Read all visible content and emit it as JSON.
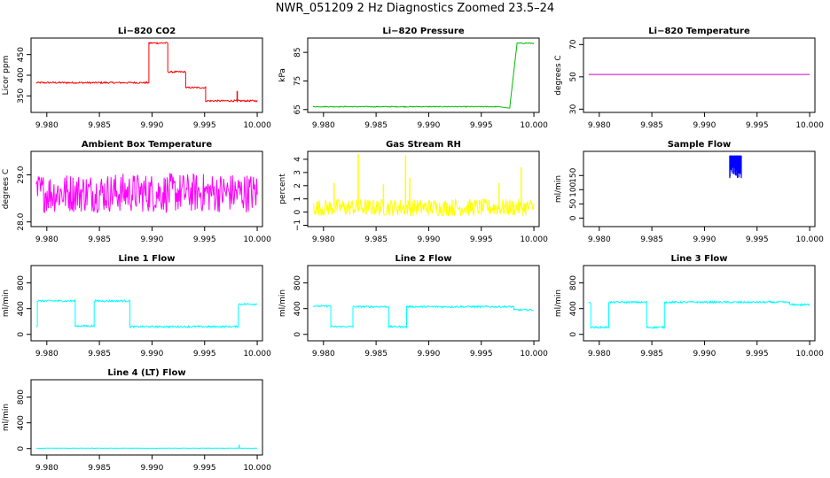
{
  "title": "NWR_051209  2 Hz Diagnostics Zoomed 23.5–24",
  "chart_data": [
    {
      "type": "line",
      "title": "Li−820 CO2",
      "ylabel": "Licor ppm",
      "color": "#ff0000",
      "xlim": [
        9.9785,
        10.0005
      ],
      "ylim": [
        310,
        490
      ],
      "xticks": [
        "9.980",
        "9.985",
        "9.990",
        "9.995",
        "10.000"
      ],
      "yticks": [
        "350",
        "400",
        "450"
      ],
      "steps": [
        [
          9.979,
          382
        ],
        [
          9.9897,
          478
        ],
        [
          9.9915,
          408
        ],
        [
          9.9932,
          370
        ],
        [
          9.9951,
          338
        ],
        [
          10.0,
          338
        ]
      ],
      "spikes": [
        [
          9.9981,
          335,
          362
        ]
      ],
      "noise": 2
    },
    {
      "type": "line",
      "title": "Li−820 Pressure",
      "ylabel": "kPa",
      "color": "#00bb00",
      "xlim": [
        9.9785,
        10.0005
      ],
      "ylim": [
        64,
        90
      ],
      "xticks": [
        "9.980",
        "9.985",
        "9.990",
        "9.995",
        "10.000"
      ],
      "yticks": [
        "65",
        "75",
        "85"
      ],
      "steps": [
        [
          9.979,
          66
        ],
        [
          9.9965,
          65.6
        ]
      ],
      "ramp": [
        [
          9.9977,
          65.6
        ],
        [
          9.9984,
          88.2
        ],
        [
          10.0,
          88.2
        ]
      ],
      "noise": 0.15
    },
    {
      "type": "line",
      "title": "Li−820 Temperature",
      "ylabel": "degrees C",
      "color": "#cc00cc",
      "xlim": [
        9.9785,
        10.0005
      ],
      "ylim": [
        28,
        74
      ],
      "xticks": [
        "9.980",
        "9.985",
        "9.990",
        "9.995",
        "10.000"
      ],
      "yticks": [
        "30",
        "50",
        "70"
      ],
      "steps": [
        [
          9.979,
          51.5
        ],
        [
          10.0,
          51.5
        ]
      ],
      "noise": 0
    },
    {
      "type": "line",
      "title": "Ambient Box Temperature",
      "ylabel": "degrees C",
      "color": "#ff00ff",
      "xlim": [
        9.9785,
        10.0005
      ],
      "ylim": [
        27.9,
        29.5
      ],
      "xticks": [
        "9.980",
        "9.985",
        "9.990",
        "9.995",
        "10.000"
      ],
      "yticks": [
        "28.0",
        "29.0"
      ],
      "steps": [
        [
          9.979,
          28.62
        ],
        [
          10.0,
          28.62
        ]
      ],
      "noise": 0.42
    },
    {
      "type": "line",
      "title": "Gas Stream RH",
      "ylabel": "percent",
      "color": "#ffff00",
      "xlim": [
        9.9785,
        10.0005
      ],
      "ylim": [
        -1.1,
        4.6
      ],
      "xticks": [
        "9.980",
        "9.985",
        "9.990",
        "9.995",
        "10.000"
      ],
      "yticks": [
        "−1",
        "0",
        "1",
        "2",
        "3",
        "4"
      ],
      "steps": [
        [
          9.979,
          0.35
        ],
        [
          10.0,
          0.35
        ]
      ],
      "noise": 0.65,
      "spikes": [
        [
          9.981,
          0,
          2.2
        ],
        [
          9.9833,
          0,
          4.4
        ],
        [
          9.9857,
          0,
          2.1
        ],
        [
          9.9878,
          0,
          4.3
        ],
        [
          9.9882,
          0,
          2.6
        ],
        [
          9.9967,
          0,
          2.2
        ],
        [
          9.9988,
          0,
          3.4
        ]
      ]
    },
    {
      "type": "line",
      "title": "Sample Flow",
      "ylabel": "ml/min",
      "color": "#0000ff",
      "xlim": [
        9.9785,
        10.0005
      ],
      "ylim": [
        -30,
        235
      ],
      "xticks": [
        "9.980",
        "9.985",
        "9.990",
        "9.995",
        "10.000"
      ],
      "yticks": [
        "0",
        "50",
        "100",
        "150"
      ],
      "bursts": [
        [
          9.9924,
          9.9935,
          140,
          220
        ]
      ]
    },
    {
      "type": "line",
      "title": "Line 1 Flow",
      "ylabel": "ml/min",
      "color": "#00ffff",
      "xlim": [
        9.9785,
        10.0005
      ],
      "ylim": [
        -100,
        1070
      ],
      "xticks": [
        "9.980",
        "9.985",
        "9.990",
        "9.995",
        "10.000"
      ],
      "yticks": [
        "0",
        "400",
        "800"
      ],
      "steps": [
        [
          9.979,
          130
        ],
        [
          9.9791,
          520
        ],
        [
          9.9827,
          130
        ],
        [
          9.9845,
          520
        ],
        [
          9.9879,
          120
        ],
        [
          9.9982,
          470
        ],
        [
          10.0,
          470
        ]
      ],
      "noise": 14
    },
    {
      "type": "line",
      "title": "Line 2 Flow",
      "ylabel": "ml/min",
      "color": "#00ffff",
      "xlim": [
        9.9785,
        10.0005
      ],
      "ylim": [
        -100,
        1070
      ],
      "xticks": [
        "9.980",
        "9.985",
        "9.990",
        "9.995",
        "10.000"
      ],
      "yticks": [
        "0",
        "400",
        "800"
      ],
      "steps": [
        [
          9.979,
          440
        ],
        [
          9.9807,
          120
        ],
        [
          9.9828,
          430
        ],
        [
          9.9862,
          120
        ],
        [
          9.9879,
          430
        ],
        [
          9.9981,
          380
        ],
        [
          10.0,
          380
        ]
      ],
      "noise": 14
    },
    {
      "type": "line",
      "title": "Line 3 Flow",
      "ylabel": "ml/min",
      "color": "#00ffff",
      "xlim": [
        9.9785,
        10.0005
      ],
      "ylim": [
        -100,
        1070
      ],
      "xticks": [
        "9.980",
        "9.985",
        "9.990",
        "9.995",
        "10.000"
      ],
      "yticks": [
        "0",
        "400",
        "800"
      ],
      "steps": [
        [
          9.979,
          490
        ],
        [
          9.9792,
          110
        ],
        [
          9.9809,
          500
        ],
        [
          9.9845,
          110
        ],
        [
          9.9862,
          500
        ],
        [
          9.9981,
          460
        ],
        [
          10.0,
          460
        ]
      ],
      "noise": 14
    },
    {
      "type": "line",
      "title": "Line 4 (LT) Flow",
      "ylabel": "ml/min",
      "color": "#00ffff",
      "xlim": [
        9.9785,
        10.0005
      ],
      "ylim": [
        -100,
        1070
      ],
      "xticks": [
        "9.980",
        "9.985",
        "9.990",
        "9.995",
        "10.000"
      ],
      "yticks": [
        "0",
        "400",
        "800"
      ],
      "steps": [
        [
          9.979,
          5
        ],
        [
          10.0,
          5
        ]
      ],
      "noise": 4,
      "spikes": [
        [
          9.9983,
          0,
          60
        ]
      ]
    }
  ]
}
